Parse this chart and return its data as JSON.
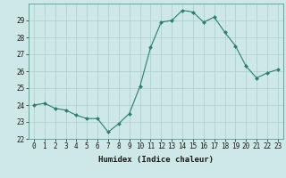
{
  "x": [
    0,
    1,
    2,
    3,
    4,
    5,
    6,
    7,
    8,
    9,
    10,
    11,
    12,
    13,
    14,
    15,
    16,
    17,
    18,
    19,
    20,
    21,
    22,
    23
  ],
  "y": [
    24.0,
    24.1,
    23.8,
    23.7,
    23.4,
    23.2,
    23.2,
    22.4,
    22.9,
    23.5,
    25.1,
    27.4,
    28.9,
    29.0,
    29.6,
    29.5,
    28.9,
    29.2,
    28.3,
    27.5,
    26.3,
    25.6,
    25.9,
    26.1
  ],
  "line_color": "#2d7d6e",
  "marker": "D",
  "marker_size": 2,
  "bg_color": "#cde8e6",
  "grid_color": "#aacfcc",
  "xlabel": "Humidex (Indice chaleur)",
  "ylim": [
    22,
    30
  ],
  "yticks": [
    22,
    23,
    24,
    25,
    26,
    27,
    28,
    29
  ],
  "xlim": [
    -0.5,
    23.5
  ],
  "xticks": [
    0,
    1,
    2,
    3,
    4,
    5,
    6,
    7,
    8,
    9,
    10,
    11,
    12,
    13,
    14,
    15,
    16,
    17,
    18,
    19,
    20,
    21,
    22,
    23
  ],
  "label_fontsize": 6.5,
  "tick_fontsize": 5.5
}
